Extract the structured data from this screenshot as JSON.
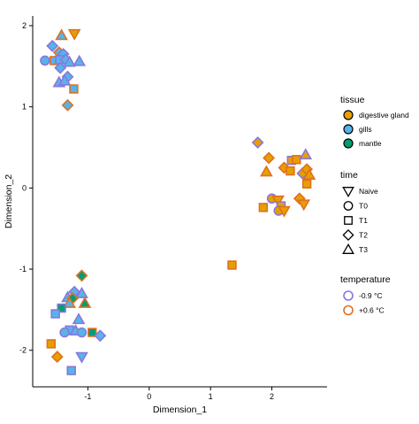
{
  "chart_data": {
    "type": "scatter",
    "xlabel": "Dimension_1",
    "ylabel": "Dimension_2",
    "xlim": [
      -1.9,
      2.9
    ],
    "ylim": [
      -2.45,
      2.12
    ],
    "xticks": [
      -1,
      0,
      1,
      2
    ],
    "yticks": [
      -2,
      -1,
      0,
      1,
      2
    ],
    "grid": false,
    "legend_position": "right",
    "legends": {
      "tissue": {
        "title": "tissue",
        "items": [
          {
            "label": "digestive gland",
            "color": "#E69F00"
          },
          {
            "label": "gills",
            "color": "#56B4E9"
          },
          {
            "label": "mantle",
            "color": "#009E73"
          }
        ]
      },
      "time": {
        "title": "time",
        "items": [
          {
            "label": "Naive",
            "shape": "triangle-down"
          },
          {
            "label": "T0",
            "shape": "circle"
          },
          {
            "label": "T1",
            "shape": "square"
          },
          {
            "label": "T2",
            "shape": "diamond"
          },
          {
            "label": "T3",
            "shape": "triangle-up"
          }
        ]
      },
      "temperature": {
        "title": "temperature",
        "items": [
          {
            "label": "-0.9 °C",
            "color": "#8877DD"
          },
          {
            "label": "+0.6 °C",
            "color": "#E07020"
          }
        ]
      }
    },
    "points": [
      {
        "x": -1.43,
        "y": 1.88,
        "tissue": "gills",
        "time": "T3",
        "temperature": "+0.6"
      },
      {
        "x": -1.22,
        "y": 1.9,
        "tissue": "digestive gland",
        "time": "Naive",
        "temperature": "+0.6"
      },
      {
        "x": -1.58,
        "y": 1.75,
        "tissue": "gills",
        "time": "T2",
        "temperature": "-0.9"
      },
      {
        "x": -1.47,
        "y": 1.67,
        "tissue": "gills",
        "time": "T2",
        "temperature": "+0.6"
      },
      {
        "x": -1.4,
        "y": 1.65,
        "tissue": "gills",
        "time": "T2",
        "temperature": "-0.9"
      },
      {
        "x": -1.7,
        "y": 1.57,
        "tissue": "gills",
        "time": "T0",
        "temperature": "-0.9"
      },
      {
        "x": -1.55,
        "y": 1.57,
        "tissue": "gills",
        "time": "T1",
        "temperature": "+0.6"
      },
      {
        "x": -1.46,
        "y": 1.58,
        "tissue": "gills",
        "time": "T1",
        "temperature": "-0.9"
      },
      {
        "x": -1.36,
        "y": 1.58,
        "tissue": "gills",
        "time": "T2",
        "temperature": "-0.9"
      },
      {
        "x": -1.3,
        "y": 1.55,
        "tissue": "gills",
        "time": "T3",
        "temperature": "-0.9"
      },
      {
        "x": -1.14,
        "y": 1.56,
        "tissue": "gills",
        "time": "T3",
        "temperature": "-0.9"
      },
      {
        "x": -1.45,
        "y": 1.48,
        "tissue": "gills",
        "time": "T2",
        "temperature": "-0.9"
      },
      {
        "x": -1.33,
        "y": 1.37,
        "tissue": "gills",
        "time": "T2",
        "temperature": "-0.9"
      },
      {
        "x": -1.47,
        "y": 1.3,
        "tissue": "gills",
        "time": "T3",
        "temperature": "-0.9"
      },
      {
        "x": -1.38,
        "y": 1.32,
        "tissue": "gills",
        "time": "T3",
        "temperature": "-0.9"
      },
      {
        "x": -1.23,
        "y": 1.22,
        "tissue": "gills",
        "time": "T1",
        "temperature": "+0.6"
      },
      {
        "x": -1.33,
        "y": 1.02,
        "tissue": "gills",
        "time": "T2",
        "temperature": "+0.6"
      },
      {
        "x": 1.77,
        "y": 0.56,
        "tissue": "digestive gland",
        "time": "T2",
        "temperature": "-0.9"
      },
      {
        "x": 1.95,
        "y": 0.37,
        "tissue": "digestive gland",
        "time": "T2",
        "temperature": "+0.6"
      },
      {
        "x": 2.32,
        "y": 0.34,
        "tissue": "digestive gland",
        "time": "T1",
        "temperature": "-0.9"
      },
      {
        "x": 2.4,
        "y": 0.35,
        "tissue": "digestive gland",
        "time": "T1",
        "temperature": "+0.6"
      },
      {
        "x": 2.55,
        "y": 0.41,
        "tissue": "digestive gland",
        "time": "T3",
        "temperature": "-0.9"
      },
      {
        "x": 2.2,
        "y": 0.25,
        "tissue": "digestive gland",
        "time": "T2",
        "temperature": "+0.6"
      },
      {
        "x": 2.3,
        "y": 0.21,
        "tissue": "digestive gland",
        "time": "T1",
        "temperature": "+0.6"
      },
      {
        "x": 2.5,
        "y": 0.18,
        "tissue": "digestive gland",
        "time": "T2",
        "temperature": "-0.9"
      },
      {
        "x": 1.91,
        "y": 0.2,
        "tissue": "digestive gland",
        "time": "T3",
        "temperature": "+0.6"
      },
      {
        "x": 2.57,
        "y": 0.23,
        "tissue": "digestive gland",
        "time": "T2",
        "temperature": "+0.6"
      },
      {
        "x": 2.61,
        "y": 0.16,
        "tissue": "digestive gland",
        "time": "T3",
        "temperature": "+0.6"
      },
      {
        "x": 2.57,
        "y": 0.05,
        "tissue": "digestive gland",
        "time": "T1",
        "temperature": "+0.6"
      },
      {
        "x": 2.0,
        "y": -0.13,
        "tissue": "digestive gland",
        "time": "T0",
        "temperature": "-0.9"
      },
      {
        "x": 2.1,
        "y": -0.15,
        "tissue": "digestive gland",
        "time": "Naive",
        "temperature": "+0.6"
      },
      {
        "x": 2.45,
        "y": -0.13,
        "tissue": "digestive gland",
        "time": "T2",
        "temperature": "+0.6"
      },
      {
        "x": 1.86,
        "y": -0.24,
        "tissue": "digestive gland",
        "time": "T1",
        "temperature": "+0.6"
      },
      {
        "x": 2.15,
        "y": -0.22,
        "tissue": "digestive gland",
        "time": "T1",
        "temperature": "-0.9"
      },
      {
        "x": 2.11,
        "y": -0.28,
        "tissue": "digestive gland",
        "time": "T0",
        "temperature": "-0.9"
      },
      {
        "x": 2.2,
        "y": -0.28,
        "tissue": "digestive gland",
        "time": "Naive",
        "temperature": "+0.6"
      },
      {
        "x": 2.52,
        "y": -0.2,
        "tissue": "digestive gland",
        "time": "Naive",
        "temperature": "+0.6"
      },
      {
        "x": 1.35,
        "y": -0.95,
        "tissue": "digestive gland",
        "time": "T1",
        "temperature": "+0.6"
      },
      {
        "x": -1.1,
        "y": -1.08,
        "tissue": "mantle",
        "time": "T2",
        "temperature": "+0.6"
      },
      {
        "x": -1.22,
        "y": -1.28,
        "tissue": "gills",
        "time": "T2",
        "temperature": "-0.9"
      },
      {
        "x": -1.1,
        "y": -1.3,
        "tissue": "gills",
        "time": "T3",
        "temperature": "-0.9"
      },
      {
        "x": -1.33,
        "y": -1.35,
        "tissue": "gills",
        "time": "T3",
        "temperature": "-0.9"
      },
      {
        "x": -1.25,
        "y": -1.36,
        "tissue": "mantle",
        "time": "T2",
        "temperature": "+0.6"
      },
      {
        "x": -1.3,
        "y": -1.42,
        "tissue": "gills",
        "time": "T3",
        "temperature": "+0.6"
      },
      {
        "x": -1.05,
        "y": -1.42,
        "tissue": "mantle",
        "time": "T3",
        "temperature": "+0.6"
      },
      {
        "x": -1.43,
        "y": -1.48,
        "tissue": "mantle",
        "time": "T1",
        "temperature": "-0.9"
      },
      {
        "x": -1.53,
        "y": -1.55,
        "tissue": "gills",
        "time": "T1",
        "temperature": "-0.9"
      },
      {
        "x": -1.15,
        "y": -1.62,
        "tissue": "gills",
        "time": "T3",
        "temperature": "-0.9"
      },
      {
        "x": -1.3,
        "y": -1.75,
        "tissue": "gills",
        "time": "T1",
        "temperature": "-0.9"
      },
      {
        "x": -1.2,
        "y": -1.76,
        "tissue": "gills",
        "time": "T3",
        "temperature": "-0.9"
      },
      {
        "x": -1.1,
        "y": -1.78,
        "tissue": "gills",
        "time": "T0",
        "temperature": "-0.9"
      },
      {
        "x": -0.93,
        "y": -1.78,
        "tissue": "mantle",
        "time": "T1",
        "temperature": "+0.6"
      },
      {
        "x": -0.8,
        "y": -1.82,
        "tissue": "gills",
        "time": "T2",
        "temperature": "-0.9"
      },
      {
        "x": -1.38,
        "y": -1.78,
        "tissue": "gills",
        "time": "T0",
        "temperature": "-0.9"
      },
      {
        "x": -1.6,
        "y": -1.92,
        "tissue": "digestive gland",
        "time": "T1",
        "temperature": "+0.6"
      },
      {
        "x": -1.5,
        "y": -2.08,
        "tissue": "digestive gland",
        "time": "T2",
        "temperature": "+0.6"
      },
      {
        "x": -1.1,
        "y": -2.08,
        "tissue": "gills",
        "time": "Naive",
        "temperature": "-0.9"
      },
      {
        "x": -1.27,
        "y": -2.25,
        "tissue": "gills",
        "time": "T1",
        "temperature": "-0.9"
      }
    ]
  }
}
